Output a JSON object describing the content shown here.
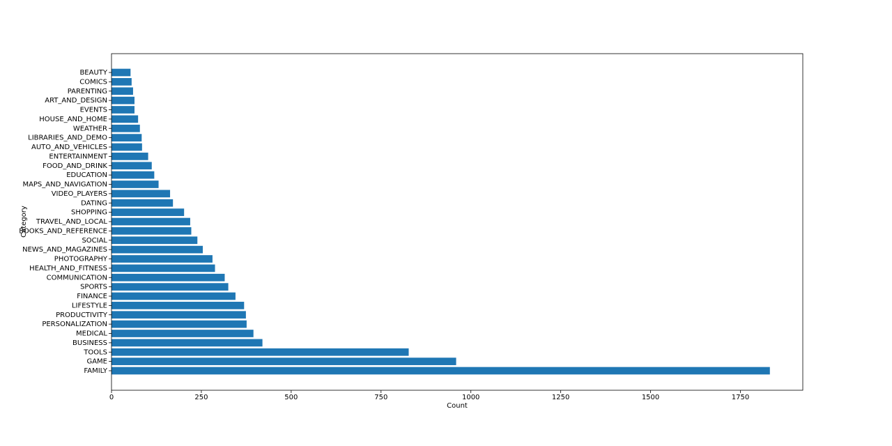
{
  "chart_data": {
    "type": "barh",
    "xlabel": "Count",
    "ylabel": "Category",
    "categories": [
      "FAMILY",
      "GAME",
      "TOOLS",
      "BUSINESS",
      "MEDICAL",
      "PERSONALIZATION",
      "PRODUCTIVITY",
      "LIFESTYLE",
      "FINANCE",
      "SPORTS",
      "COMMUNICATION",
      "HEALTH_AND_FITNESS",
      "PHOTOGRAPHY",
      "NEWS_AND_MAGAZINES",
      "SOCIAL",
      "BOOKS_AND_REFERENCE",
      "TRAVEL_AND_LOCAL",
      "SHOPPING",
      "DATING",
      "VIDEO_PLAYERS",
      "MAPS_AND_NAVIGATION",
      "EDUCATION",
      "FOOD_AND_DRINK",
      "ENTERTAINMENT",
      "AUTO_AND_VEHICLES",
      "LIBRARIES_AND_DEMO",
      "WEATHER",
      "HOUSE_AND_HOME",
      "EVENTS",
      "ART_AND_DESIGN",
      "PARENTING",
      "COMICS",
      "BEAUTY"
    ],
    "values": [
      1832,
      959,
      827,
      420,
      395,
      376,
      374,
      369,
      345,
      325,
      315,
      288,
      281,
      254,
      239,
      222,
      219,
      202,
      171,
      163,
      131,
      119,
      112,
      102,
      85,
      84,
      79,
      74,
      64,
      64,
      60,
      56,
      53
    ],
    "color": "#1f77b4",
    "xlim": [
      0,
      1923.6
    ],
    "xticks": [
      0,
      250,
      500,
      750,
      1000,
      1250,
      1500,
      1750
    ]
  }
}
